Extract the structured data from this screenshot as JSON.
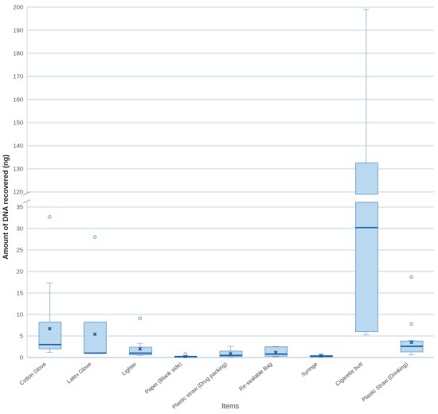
{
  "chart_data": {
    "type": "box",
    "xlabel": "Items",
    "ylabel": "Amount of DNA recovered (ng)",
    "grid": true,
    "y_axis_break": {
      "lower_range": [
        0,
        35
      ],
      "upper_range": [
        115,
        200
      ]
    },
    "yticks_lower": [
      0,
      5,
      10,
      15,
      20,
      25,
      30,
      35
    ],
    "yticks_upper": [
      120,
      130,
      140,
      150,
      160,
      170,
      180,
      190,
      200
    ],
    "categories": [
      "Cotton Glove",
      "Latex Glove",
      "Lighter",
      "Paper (Blank side)",
      "Plastic straw (Drug packing)",
      "Re-sealable Bag",
      "Syringe",
      "Cigarette butt",
      "Plastic Straw (Drinking)"
    ],
    "boxes": [
      {
        "min": 1.2,
        "q1": 2.0,
        "median": 3.0,
        "q3": 8.2,
        "max": 17.3,
        "mean": 6.7,
        "outliers": [
          32.7
        ]
      },
      {
        "min": 1.0,
        "q1": 1.0,
        "median": 1.0,
        "q3": 8.2,
        "max": 8.2,
        "mean": 5.4,
        "outliers": [
          28.0
        ]
      },
      {
        "min": 0.5,
        "q1": 0.6,
        "median": 1.0,
        "q3": 2.4,
        "max": 3.3,
        "mean": 2.0,
        "outliers": [
          9.1
        ]
      },
      {
        "min": 0.0,
        "q1": 0.0,
        "median": 0.2,
        "q3": 0.3,
        "max": 0.5,
        "mean": 0.25,
        "outliers": [
          0.8
        ]
      },
      {
        "min": 0.1,
        "q1": 0.2,
        "median": 0.5,
        "q3": 1.5,
        "max": 2.6,
        "mean": 0.9,
        "outliers": []
      },
      {
        "min": 0.2,
        "q1": 0.3,
        "median": 0.8,
        "q3": 2.5,
        "max": 2.6,
        "mean": 1.2,
        "outliers": []
      },
      {
        "min": 0.1,
        "q1": 0.1,
        "median": 0.3,
        "q3": 0.5,
        "max": 0.8,
        "mean": 0.4,
        "outliers": []
      },
      {
        "min": 5.3,
        "q1": 6.0,
        "median": 30.2,
        "q3": 132.5,
        "max": 199.0,
        "mean": null,
        "outliers": []
      },
      {
        "min": 0.6,
        "q1": 1.3,
        "median": 2.6,
        "q3": 3.8,
        "max": 4.0,
        "mean": 3.5,
        "outliers": [
          7.8,
          18.7
        ]
      }
    ],
    "colors": {
      "box_fill": "#b9d9f0",
      "box_stroke": "#5b8fc1",
      "median": "#1f5fa0",
      "mean": "#1f4e8c",
      "grid": "#a9c6e6",
      "whisker": "#8fb2d6"
    }
  }
}
